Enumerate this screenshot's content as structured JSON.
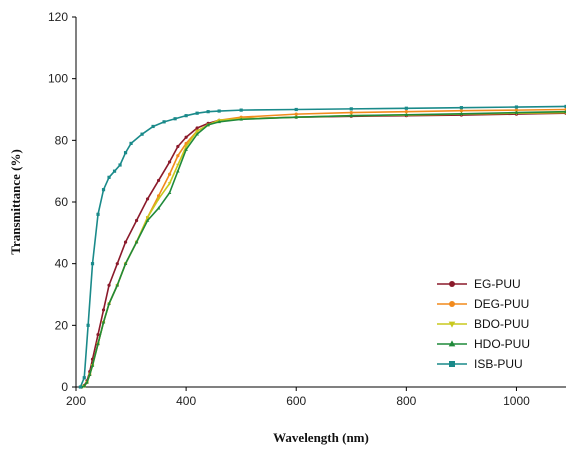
{
  "chart_data": {
    "type": "line",
    "title": "",
    "xlabel": "Wavelength (nm)",
    "ylabel": "Transmittance (%)",
    "xlim": [
      200,
      1090
    ],
    "ylim": [
      0,
      120
    ],
    "xticks": [
      200,
      400,
      600,
      800,
      1000
    ],
    "yticks": [
      0,
      20,
      40,
      60,
      80,
      100,
      120
    ],
    "grid": false,
    "legend_position": "bottom-right",
    "series": [
      {
        "name": "EG-PUU",
        "color": "#8b1a2b",
        "marker": "circle",
        "x": [
          210,
          215,
          220,
          225,
          230,
          240,
          250,
          260,
          275,
          290,
          310,
          330,
          350,
          370,
          385,
          400,
          420,
          440,
          460,
          500,
          600,
          700,
          800,
          900,
          1000,
          1090
        ],
        "y": [
          0,
          0.5,
          2,
          5,
          9,
          17,
          25,
          33,
          40,
          47,
          54,
          61,
          67,
          73,
          78,
          81,
          84,
          85.5,
          86.5,
          87,
          87.5,
          87.8,
          88,
          88.2,
          88.5,
          88.8
        ]
      },
      {
        "name": "DEG-PUU",
        "color": "#f28a1c",
        "marker": "circle",
        "x": [
          210,
          215,
          220,
          225,
          230,
          240,
          250,
          260,
          275,
          290,
          310,
          330,
          350,
          370,
          385,
          400,
          420,
          440,
          460,
          500,
          600,
          700,
          800,
          900,
          1000,
          1090
        ],
        "y": [
          0,
          0.3,
          1.5,
          4,
          7,
          14,
          21,
          27,
          33,
          40,
          47,
          55,
          62,
          69,
          75,
          79,
          83,
          85,
          86.5,
          87.5,
          88.5,
          89,
          89.3,
          89.6,
          89.8,
          90
        ]
      },
      {
        "name": "BDO-PUU",
        "color": "#c8c81e",
        "marker": "triangle-down",
        "x": [
          210,
          215,
          220,
          225,
          230,
          240,
          250,
          260,
          275,
          290,
          310,
          330,
          350,
          370,
          385,
          400,
          420,
          440,
          460,
          500,
          600,
          700,
          800,
          900,
          1000,
          1090
        ],
        "y": [
          0,
          0.3,
          1.5,
          4,
          7,
          14,
          21,
          27,
          33,
          40,
          47,
          55,
          61,
          66,
          72,
          78,
          83,
          85,
          86.5,
          87,
          87.5,
          88,
          88.2,
          88.5,
          88.8,
          89
        ]
      },
      {
        "name": "HDO-PUU",
        "color": "#1f8a3a",
        "marker": "triangle-up",
        "x": [
          210,
          215,
          220,
          225,
          230,
          240,
          250,
          260,
          275,
          290,
          310,
          330,
          350,
          370,
          385,
          400,
          420,
          440,
          460,
          500,
          600,
          700,
          800,
          900,
          1000,
          1090
        ],
        "y": [
          0,
          0.3,
          1.5,
          4,
          7,
          14,
          21,
          27,
          33,
          40,
          47,
          54,
          58,
          63,
          70,
          77,
          82,
          85,
          86,
          86.8,
          87.5,
          88,
          88.3,
          88.6,
          89,
          89.3
        ]
      },
      {
        "name": "ISB-PUU",
        "color": "#1a8a8a",
        "marker": "square",
        "x": [
          208,
          215,
          222,
          230,
          240,
          250,
          260,
          270,
          280,
          290,
          300,
          320,
          340,
          360,
          380,
          400,
          420,
          440,
          460,
          500,
          600,
          700,
          800,
          900,
          1000,
          1090
        ],
        "y": [
          0,
          3,
          20,
          40,
          56,
          64,
          68,
          70,
          72,
          76,
          79,
          82,
          84.5,
          86,
          87,
          88,
          88.8,
          89.3,
          89.5,
          89.8,
          90,
          90.2,
          90.4,
          90.6,
          90.8,
          91
        ]
      }
    ]
  }
}
